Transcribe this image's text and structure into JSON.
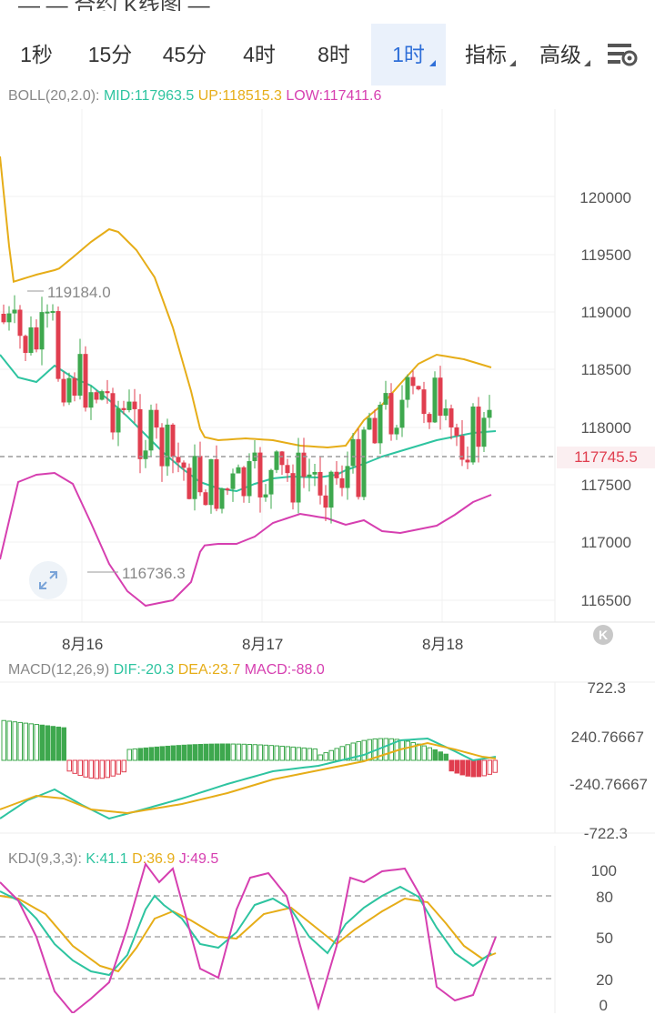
{
  "header": {
    "title_fragment": "— — 合约 K线图 —"
  },
  "tabs": [
    {
      "label": "1秒",
      "active": false,
      "dropdown": false
    },
    {
      "label": "15分",
      "active": false,
      "dropdown": false
    },
    {
      "label": "45分",
      "active": false,
      "dropdown": false
    },
    {
      "label": "4时",
      "active": false,
      "dropdown": false
    },
    {
      "label": "8时",
      "active": false,
      "dropdown": false
    },
    {
      "label": "1时",
      "active": true,
      "dropdown": true
    },
    {
      "label": "指标",
      "active": false,
      "dropdown": true
    },
    {
      "label": "高级",
      "active": false,
      "dropdown": true
    }
  ],
  "settings_icon": "chart-settings-icon",
  "boll": {
    "name": "BOLL(20,2.0):",
    "mid": "MID:117963.5",
    "up": "UP:118515.3",
    "low": "LOW:117411.6"
  },
  "price_axis": [
    "120000",
    "119500",
    "119000",
    "118500",
    "118000",
    "117500",
    "117000",
    "116500"
  ],
  "current_price": "117745.5",
  "max_label": "119184.0",
  "min_label": "116736.3",
  "dates": [
    "8月16",
    "8月17",
    "8月18"
  ],
  "macd": {
    "name": "MACD(12,26,9)",
    "dif": "DIF:-20.3",
    "dea": "DEA:23.7",
    "macd": "MACD:-88.0",
    "axis": [
      "722.3",
      "240.76667",
      "-240.76667",
      "-722.3"
    ]
  },
  "kdj": {
    "name": "KDJ(9,3,3):",
    "k": "K:41.1",
    "d": "D:36.9",
    "j": "J:49.5",
    "axis": [
      "100",
      "80",
      "50",
      "20",
      "0"
    ]
  },
  "colors": {
    "up": "#3ea84e",
    "down": "#e03e4f",
    "mid": "#2ec4a0",
    "upper": "#e6ad18",
    "lower": "#d63fb0",
    "active_tab": "#2f6fd8"
  }
}
